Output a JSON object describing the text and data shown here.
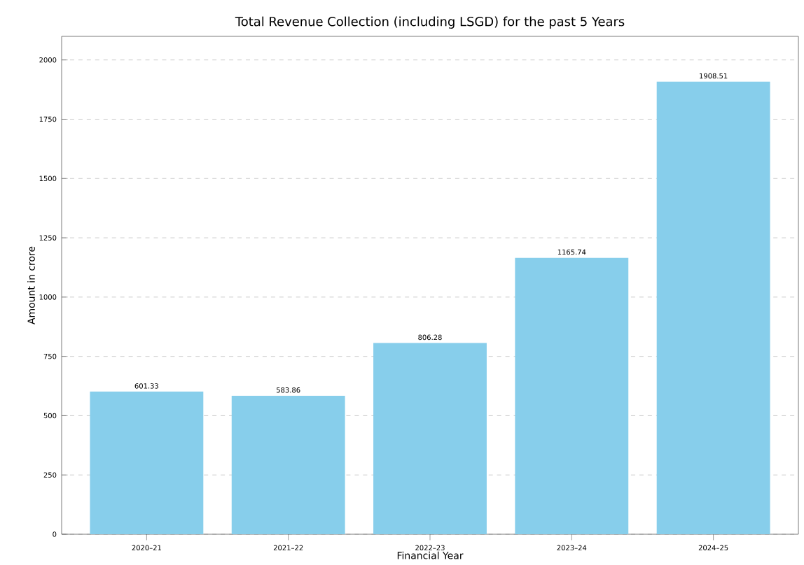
{
  "chart_data": {
    "type": "bar",
    "title": "Total Revenue Collection (including LSGD) for the past 5 Years",
    "xlabel": "Financial Year",
    "ylabel": "Amount in crore",
    "categories": [
      "2020–21",
      "2021–22",
      "2022–23",
      "2023–24",
      "2024–25"
    ],
    "values": [
      601.33,
      583.86,
      806.28,
      1165.74,
      1908.51
    ],
    "color": "#87ceeb",
    "ylim": [
      0,
      2099.4
    ],
    "yticks": [
      0,
      250,
      500,
      750,
      1000,
      1250,
      1500,
      1750,
      2000
    ],
    "grid": "y",
    "data_labels": true
  }
}
